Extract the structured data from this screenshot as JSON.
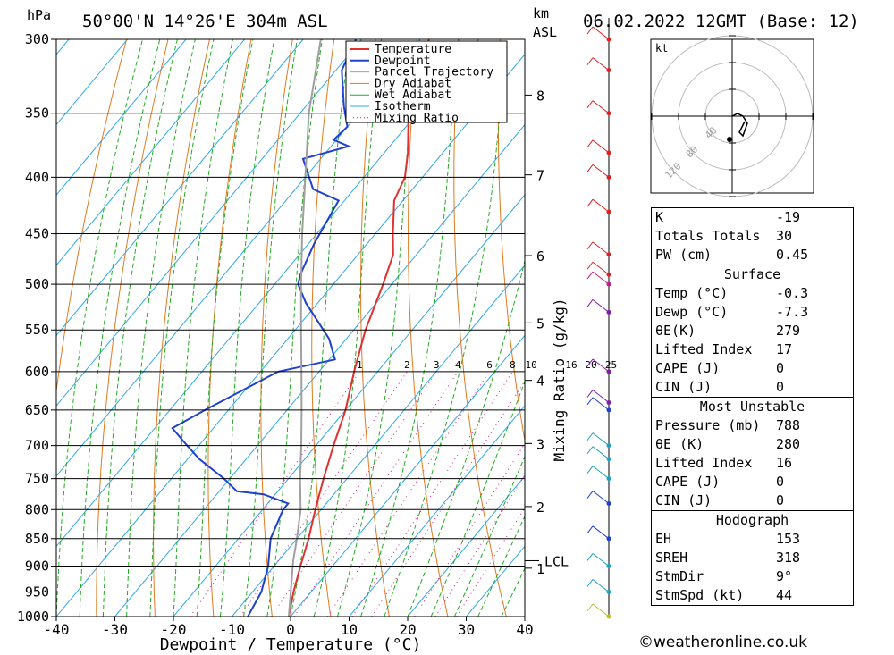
{
  "header": {
    "location": "50°00'N 14°26'E 304m ASL",
    "datetime": "06.02.2022 12GMT (Base: 12)",
    "left_unit": "hPa",
    "km_label": "km",
    "asl_label": "ASL",
    "wind_unit": "kt"
  },
  "chart_data": {
    "type": "line",
    "title": "50°00'N 14°26'E 304m ASL",
    "xlabel": "Dewpoint / Temperature (°C)",
    "ylabel": "hPa",
    "x_ticks": [
      -40,
      -30,
      -20,
      -10,
      0,
      10,
      20,
      30,
      40
    ],
    "pressure_levels": [
      300,
      350,
      400,
      450,
      500,
      550,
      600,
      650,
      700,
      750,
      800,
      850,
      900,
      950,
      1000
    ],
    "ylim": [
      1000,
      300
    ],
    "skew": "skew-T log-p",
    "km_ticks": [
      {
        "p": 337,
        "label": "8"
      },
      {
        "p": 398,
        "label": "7"
      },
      {
        "p": 471,
        "label": "6"
      },
      {
        "p": 542,
        "label": "5"
      },
      {
        "p": 611,
        "label": "4"
      },
      {
        "p": 697,
        "label": "3"
      },
      {
        "p": 795,
        "label": "2"
      },
      {
        "p": 904,
        "label": "1"
      }
    ],
    "lcl": {
      "p": 890,
      "label": "LCL"
    },
    "mixing_ratio_label": "Mixing Ratio (g/kg)",
    "mixing_ratio_values": [
      "1",
      "2",
      "3",
      "4",
      "6",
      "8",
      "10",
      "16",
      "20",
      "25"
    ],
    "legend": [
      "Temperature",
      "Dewpoint",
      "Parcel Trajectory",
      "Dry Adiabat",
      "Wet Adiabat",
      "Isotherm",
      "Mixing Ratio"
    ],
    "legend_position": "top-right",
    "colors": {
      "temperature": "#e03030",
      "dewpoint": "#2040d0",
      "parcel": "#a0a0a0",
      "dry_adiabat": "#e07a20",
      "wet_adiabat": "#22aa22",
      "isotherm": "#2fa8e8",
      "mixing_ratio": "#cc2288"
    },
    "series": [
      {
        "name": "Temperature",
        "points": [
          [
            1000,
            -0.3
          ],
          [
            950,
            -3
          ],
          [
            900,
            -5.5
          ],
          [
            850,
            -8
          ],
          [
            800,
            -11
          ],
          [
            750,
            -14
          ],
          [
            700,
            -17
          ],
          [
            650,
            -20
          ],
          [
            600,
            -24
          ],
          [
            550,
            -28
          ],
          [
            500,
            -31.5
          ],
          [
            470,
            -34
          ],
          [
            450,
            -37
          ],
          [
            420,
            -41.5
          ],
          [
            400,
            -43
          ],
          [
            380,
            -46
          ],
          [
            350,
            -51.5
          ],
          [
            320,
            -56
          ],
          [
            300,
            -58.5
          ]
        ]
      },
      {
        "name": "Dewpoint",
        "points": [
          [
            1000,
            -7.3
          ],
          [
            950,
            -8.5
          ],
          [
            900,
            -11
          ],
          [
            850,
            -14.5
          ],
          [
            800,
            -16.5
          ],
          [
            790,
            -16.5
          ],
          [
            775,
            -22
          ],
          [
            770,
            -27
          ],
          [
            750,
            -31
          ],
          [
            720,
            -38
          ],
          [
            700,
            -42
          ],
          [
            675,
            -47
          ],
          [
            650,
            -44
          ],
          [
            600,
            -37
          ],
          [
            585,
            -29
          ],
          [
            560,
            -33
          ],
          [
            520,
            -42
          ],
          [
            500,
            -46
          ],
          [
            490,
            -47
          ],
          [
            460,
            -49
          ],
          [
            420,
            -51
          ],
          [
            410,
            -57
          ],
          [
            385,
            -63
          ],
          [
            375,
            -57
          ],
          [
            370,
            -60.5
          ],
          [
            360,
            -60
          ],
          [
            345,
            -63.5
          ],
          [
            320,
            -69
          ],
          [
            300,
            -71
          ]
        ]
      },
      {
        "name": "Parcel Trajectory",
        "points": [
          [
            1000,
            -0.3
          ],
          [
            890,
            -7.5
          ],
          [
            850,
            -10
          ],
          [
            800,
            -13.5
          ],
          [
            750,
            -18
          ],
          [
            700,
            -22.5
          ],
          [
            650,
            -27.5
          ],
          [
            600,
            -33
          ],
          [
            550,
            -39
          ],
          [
            500,
            -45.5
          ],
          [
            450,
            -52.5
          ],
          [
            400,
            -60
          ],
          [
            350,
            -68.5
          ],
          [
            300,
            -77
          ]
        ]
      }
    ],
    "hodograph": {
      "rings_kt": [
        40,
        80,
        120
      ]
    }
  },
  "indices": [
    {
      "label": "K",
      "value": "-19"
    },
    {
      "label": "Totals Totals",
      "value": "30"
    },
    {
      "label": "PW (cm)",
      "value": "0.45"
    }
  ],
  "surface": {
    "title": "Surface",
    "rows": [
      {
        "label": "Temp (°C)",
        "value": "-0.3"
      },
      {
        "label": "Dewp (°C)",
        "value": "-7.3"
      },
      {
        "label": "θE(K)",
        "value": "279"
      },
      {
        "label": "Lifted Index",
        "value": "17"
      },
      {
        "label": "CAPE (J)",
        "value": "0"
      },
      {
        "label": "CIN (J)",
        "value": "0"
      }
    ]
  },
  "most_unstable": {
    "title": "Most Unstable",
    "rows": [
      {
        "label": "Pressure (mb)",
        "value": "788"
      },
      {
        "label": "θE (K)",
        "value": "280"
      },
      {
        "label": "Lifted Index",
        "value": "16"
      },
      {
        "label": "CAPE (J)",
        "value": "0"
      },
      {
        "label": "CIN (J)",
        "value": "0"
      }
    ]
  },
  "hodograph_table": {
    "title": "Hodograph",
    "rows": [
      {
        "label": "EH",
        "value": "153"
      },
      {
        "label": "SREH",
        "value": "318"
      },
      {
        "label": "StmDir",
        "value": "9°"
      },
      {
        "label": "StmSpd (kt)",
        "value": "44"
      }
    ]
  },
  "footer": {
    "credit": "©weatheronline.co.uk"
  }
}
